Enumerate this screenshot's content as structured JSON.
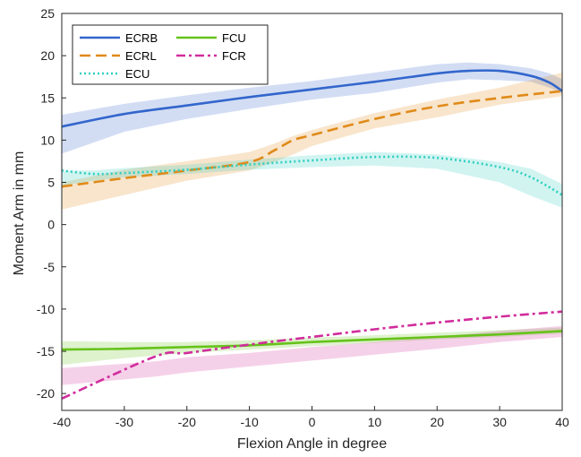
{
  "chart_data": {
    "type": "line",
    "xlabel": "Flexion Angle in degree",
    "ylabel": "Moment Arm in mm",
    "xlim": [
      -40,
      40
    ],
    "ylim": [
      -22,
      25
    ],
    "xticks": [
      -40,
      -30,
      -20,
      -10,
      0,
      10,
      20,
      30,
      40
    ],
    "yticks": [
      25,
      20,
      15,
      10,
      5,
      0,
      -5,
      -10,
      -15,
      -20
    ],
    "grid": false,
    "legend_position": "top-left",
    "legend_entries": [
      "ECRB",
      "FCU",
      "ECRL",
      "FCR",
      "ECU"
    ],
    "series": [
      {
        "name": "ECRB",
        "color": "#3366cc",
        "dash": "solid",
        "x": [
          -40,
          -30,
          -20,
          -10,
          0,
          10,
          20,
          25,
          30,
          35,
          38,
          40
        ],
        "y": [
          11.6,
          13.1,
          14.1,
          15.1,
          16.0,
          16.9,
          17.9,
          18.2,
          18.2,
          17.6,
          16.8,
          15.8
        ],
        "band_upper": [
          13.0,
          14.3,
          15.3,
          16.2,
          17.0,
          18.0,
          19.0,
          19.2,
          19.0,
          18.5,
          17.9,
          17.2
        ],
        "band_lower": [
          8.4,
          11.0,
          12.5,
          13.7,
          14.8,
          15.6,
          16.8,
          17.2,
          17.1,
          16.9,
          16.2,
          15.5
        ]
      },
      {
        "name": "ECRL",
        "color": "#e08a19",
        "dash": "dashed",
        "x": [
          -40,
          -30,
          -20,
          -10,
          -6,
          -3,
          0,
          10,
          20,
          30,
          40
        ],
        "y": [
          4.5,
          5.5,
          6.4,
          7.4,
          8.8,
          10.0,
          10.6,
          12.5,
          14.0,
          15.0,
          15.8
        ],
        "band_upper": [
          5.0,
          6.5,
          7.5,
          8.6,
          9.6,
          10.5,
          11.2,
          13.2,
          14.8,
          16.2,
          18.0
        ],
        "band_lower": [
          1.8,
          3.5,
          5.2,
          6.4,
          7.4,
          8.3,
          9.3,
          11.4,
          12.7,
          14.2,
          15.2
        ]
      },
      {
        "name": "ECU",
        "color": "#2ecfc0",
        "dash": "dotted",
        "x": [
          -40,
          -35,
          -30,
          -20,
          -10,
          0,
          10,
          20,
          30,
          35,
          40
        ],
        "y": [
          6.4,
          6.0,
          6.1,
          6.5,
          7.1,
          7.6,
          8.0,
          7.9,
          6.8,
          5.6,
          3.5
        ],
        "band_upper": [
          6.4,
          6.4,
          6.7,
          7.1,
          7.7,
          8.2,
          8.6,
          8.3,
          7.4,
          6.6,
          4.8
        ],
        "band_lower": [
          4.6,
          5.2,
          5.6,
          6.0,
          6.5,
          6.8,
          7.0,
          6.6,
          5.0,
          3.4,
          2.0
        ]
      },
      {
        "name": "FCU",
        "color": "#66c21a",
        "dash": "solid",
        "x": [
          -40,
          -30,
          -20,
          -10,
          0,
          10,
          20,
          30,
          40
        ],
        "y": [
          -14.8,
          -14.7,
          -14.5,
          -14.3,
          -13.9,
          -13.6,
          -13.3,
          -13.0,
          -12.6
        ],
        "band_upper": [
          -13.8,
          -13.9,
          -13.9,
          -13.7,
          -13.4,
          -13.1,
          -12.8,
          -12.5,
          -12.2
        ],
        "band_lower": [
          -16.6,
          -15.8,
          -15.2,
          -14.8,
          -14.4,
          -14.0,
          -13.6,
          -13.3,
          -12.9
        ]
      },
      {
        "name": "FCR",
        "color": "#d12c9c",
        "dash": "dashdot",
        "x": [
          -40,
          -25,
          -20,
          -10,
          0,
          10,
          20,
          30,
          40
        ],
        "y": [
          -20.6,
          -15.6,
          -15.2,
          -14.2,
          -13.3,
          -12.4,
          -11.6,
          -10.9,
          -10.3
        ],
        "band_upper": [
          -17.0,
          -16.2,
          -15.7,
          -15.2,
          -14.5,
          -13.9,
          -13.3,
          -12.6,
          -12.0
        ],
        "band_lower": [
          -19.0,
          -18.0,
          -17.5,
          -16.8,
          -16.1,
          -15.4,
          -14.7,
          -13.9,
          -13.3
        ]
      }
    ]
  }
}
